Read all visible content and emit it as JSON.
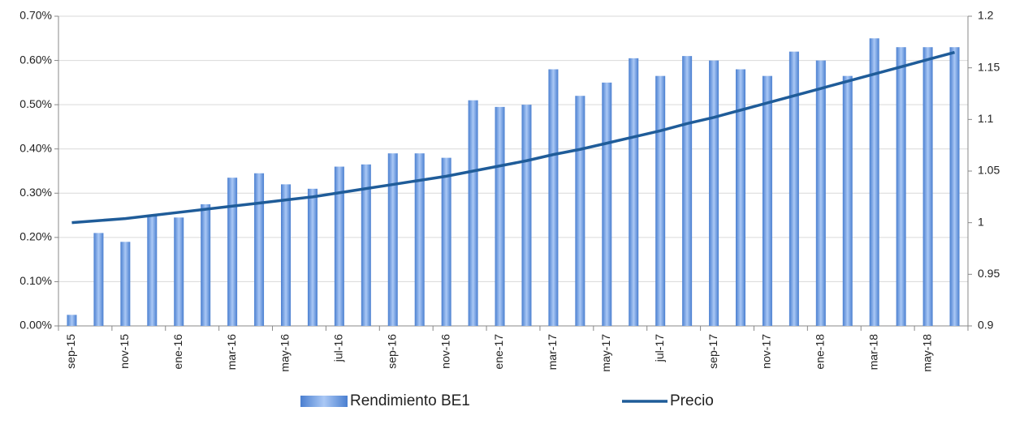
{
  "chart_data": {
    "type": "bar_line",
    "categories": [
      "sep-15",
      null,
      "nov-15",
      null,
      "ene-16",
      null,
      "mar-16",
      null,
      "may-16",
      null,
      "jul-16",
      null,
      "sep-16",
      null,
      "nov-16",
      null,
      "ene-17",
      null,
      "mar-17",
      null,
      "may-17",
      null,
      "jul-17",
      null,
      "sep-17",
      null,
      "nov-17",
      null,
      "ene-18",
      null,
      "mar-18",
      null,
      "may-18",
      null
    ],
    "series": [
      {
        "name": "Rendimiento BE1",
        "type": "bar",
        "color": "#4a7fd0",
        "values": [
          0.025,
          0.21,
          0.19,
          0.25,
          0.245,
          0.275,
          0.335,
          0.345,
          0.32,
          0.31,
          0.36,
          0.365,
          0.39,
          0.39,
          0.38,
          0.51,
          0.495,
          0.5,
          0.58,
          0.52,
          0.55,
          0.605,
          0.565,
          0.61,
          0.6,
          0.58,
          0.565,
          0.62,
          0.6,
          0.565,
          0.65,
          0.63,
          0.63,
          0.63
        ]
      },
      {
        "name": "Precio",
        "type": "line",
        "axis": "y2",
        "color": "#1f5c99",
        "values": [
          1.0,
          1.002,
          1.004,
          1.007,
          1.01,
          1.013,
          1.016,
          1.019,
          1.022,
          1.025,
          1.029,
          1.033,
          1.037,
          1.041,
          1.045,
          1.05,
          1.055,
          1.06,
          1.066,
          1.071,
          1.077,
          1.083,
          1.089,
          1.096,
          1.102,
          1.109,
          1.116,
          1.123,
          1.13,
          1.137,
          1.144,
          1.151,
          1.158,
          1.165
        ]
      }
    ],
    "ylim": [
      0,
      0.7
    ],
    "yticks": [
      {
        "value": 0,
        "label": "0.00%"
      },
      {
        "value": 0.1,
        "label": "0.10%"
      },
      {
        "value": 0.2,
        "label": "0.20%"
      },
      {
        "value": 0.3,
        "label": "0.30%"
      },
      {
        "value": 0.4,
        "label": "0.40%"
      },
      {
        "value": 0.5,
        "label": "0.50%"
      },
      {
        "value": 0.6,
        "label": "0.60%"
      },
      {
        "value": 0.7,
        "label": "0.70%"
      }
    ],
    "y2lim": [
      0.9,
      1.2
    ],
    "y2ticks": [
      0.9,
      0.95,
      1,
      1.05,
      1.1,
      1.15,
      1.2
    ],
    "grid": true,
    "legend": "bottom"
  }
}
